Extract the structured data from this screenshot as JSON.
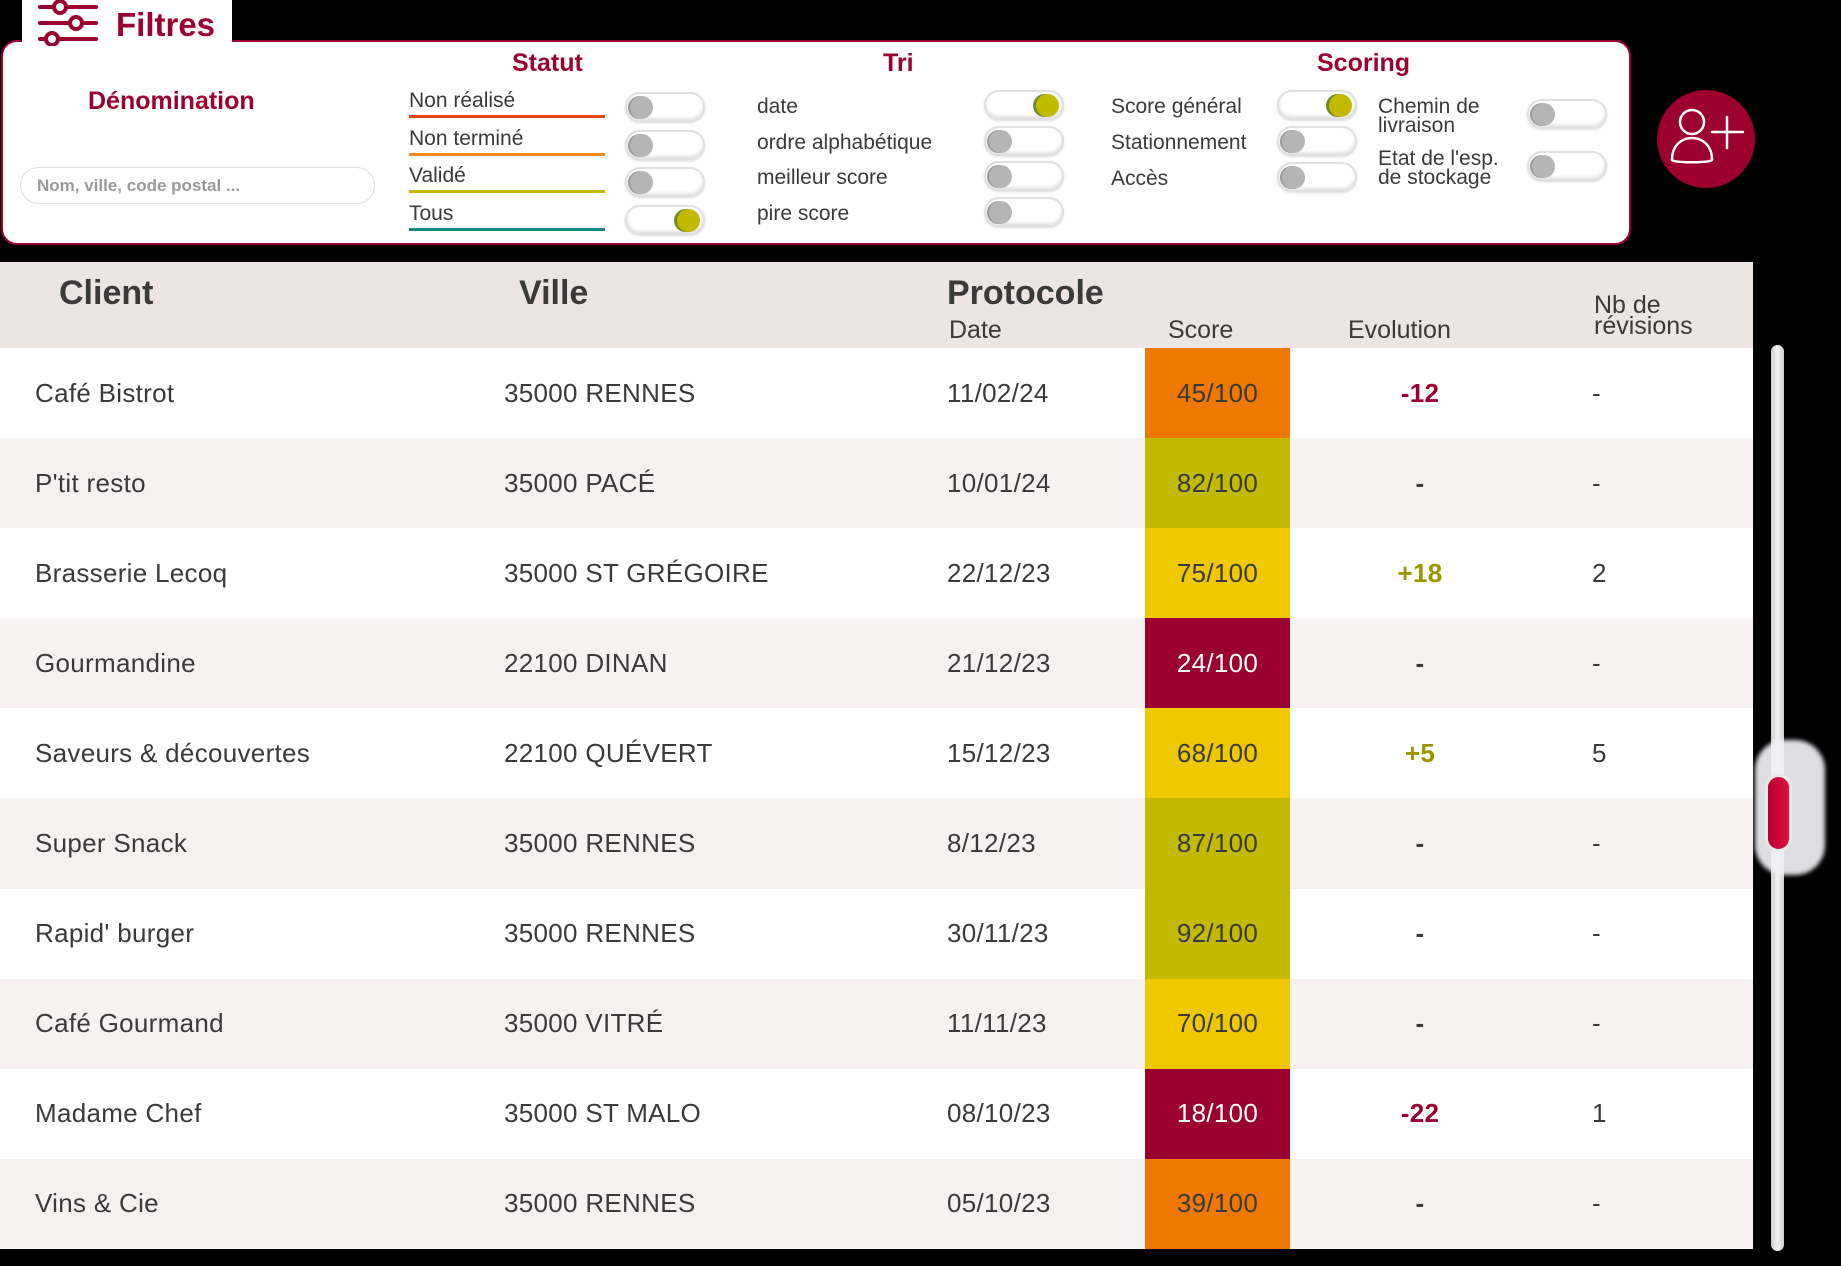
{
  "filters": {
    "title": "Filtres",
    "icon": "sliders-icon",
    "denomination": {
      "title": "Dénomination",
      "search_placeholder": "Nom, ville, code postal ...",
      "search_value": ""
    },
    "statut": {
      "title": "Statut",
      "items": [
        {
          "label": "Non réalisé",
          "underline_color": "#e8460f",
          "on": false
        },
        {
          "label": "Non terminé",
          "underline_color": "#f08a1e",
          "on": false
        },
        {
          "label": "Validé",
          "underline_color": "#c3ba00",
          "on": false
        },
        {
          "label": "Tous",
          "underline_color": "#1a8a80",
          "on": true
        }
      ]
    },
    "tri": {
      "title": "Tri",
      "items": [
        {
          "label": "date",
          "on": true
        },
        {
          "label": "ordre alphabétique",
          "on": false
        },
        {
          "label": "meilleur score",
          "on": false
        },
        {
          "label": "pire score",
          "on": false
        }
      ]
    },
    "scoring": {
      "title": "Scoring",
      "items": [
        {
          "label": "Score général",
          "on": true
        },
        {
          "label": "Stationnement",
          "on": false
        },
        {
          "label": "Accès",
          "on": false
        },
        {
          "label_line1": "Chemin de",
          "label_line2": "livraison",
          "on": false
        },
        {
          "label_line1": "Etat de l'esp.",
          "label_line2": "de stockage",
          "on": false
        }
      ]
    }
  },
  "add_client_button": {
    "icon": "add-user-icon"
  },
  "table": {
    "headers": {
      "client": "Client",
      "ville": "Ville",
      "protocole": "Protocole",
      "date": "Date",
      "score": "Score",
      "evolution": "Evolution",
      "revisions_line1": "Nb de",
      "revisions_line2": "révisions"
    },
    "rows": [
      {
        "client": "Café Bistrot",
        "ville": "35000 RENNES",
        "date": "11/02/24",
        "score": "45/100",
        "score_color": "#ef7800",
        "score_text_color": "#3a3a3a",
        "evolution": "-12",
        "evolution_color": "#9c002e",
        "revisions": "-"
      },
      {
        "client": "P'tit resto",
        "ville": "35000 PACÉ",
        "date": "10/01/24",
        "score": "82/100",
        "score_color": "#c2ba00",
        "score_text_color": "#3a3a3a",
        "evolution": "-",
        "evolution_color": "#3a3a3a",
        "revisions": "-"
      },
      {
        "client": "Brasserie Lecoq",
        "ville": "35000 ST GRÉGOIRE",
        "date": "22/12/23",
        "score": "75/100",
        "score_color": "#efc800",
        "score_text_color": "#3a3a3a",
        "evolution": "+18",
        "evolution_color": "#9c9400",
        "revisions": "2"
      },
      {
        "client": "Gourmandine",
        "ville": "22100 DINAN",
        "date": "21/12/23",
        "score": "24/100",
        "score_color": "#9c002e",
        "score_text_color": "#ffffff",
        "evolution": "-",
        "evolution_color": "#3a3a3a",
        "revisions": "-"
      },
      {
        "client": "Saveurs & découvertes",
        "ville": "22100 QUÉVERT",
        "date": "15/12/23",
        "score": "68/100",
        "score_color": "#efc800",
        "score_text_color": "#3a3a3a",
        "evolution": "+5",
        "evolution_color": "#9c9400",
        "revisions": "5"
      },
      {
        "client": "Super Snack",
        "ville": "35000 RENNES",
        "date": "8/12/23",
        "score": "87/100",
        "score_color": "#c2ba00",
        "score_text_color": "#3a3a3a",
        "evolution": "-",
        "evolution_color": "#3a3a3a",
        "revisions": "-"
      },
      {
        "client": "Rapid' burger",
        "ville": "35000 RENNES",
        "date": "30/11/23",
        "score": "92/100",
        "score_color": "#c2ba00",
        "score_text_color": "#3a3a3a",
        "evolution": "-",
        "evolution_color": "#3a3a3a",
        "revisions": "-"
      },
      {
        "client": "Café Gourmand",
        "ville": "35000 VITRÉ",
        "date": "11/11/23",
        "score": "70/100",
        "score_color": "#efc800",
        "score_text_color": "#3a3a3a",
        "evolution": "-",
        "evolution_color": "#3a3a3a",
        "revisions": "-"
      },
      {
        "client": "Madame Chef",
        "ville": "35000 ST MALO",
        "date": "08/10/23",
        "score": "18/100",
        "score_color": "#9c002e",
        "score_text_color": "#ffffff",
        "evolution": "-22",
        "evolution_color": "#9c002e",
        "revisions": "1"
      },
      {
        "client": "Vins & Cie",
        "ville": "35000 RENNES",
        "date": "05/10/23",
        "score": "39/100",
        "score_color": "#ef7800",
        "score_text_color": "#3a3a3a",
        "evolution": "-",
        "evolution_color": "#3a3a3a",
        "revisions": "-"
      }
    ]
  },
  "colors": {
    "brand": "#9c002e",
    "toggle_on": "#c0bb00",
    "header_bg": "#ede4e4",
    "row_alt_bg": "#f6f2f2"
  }
}
